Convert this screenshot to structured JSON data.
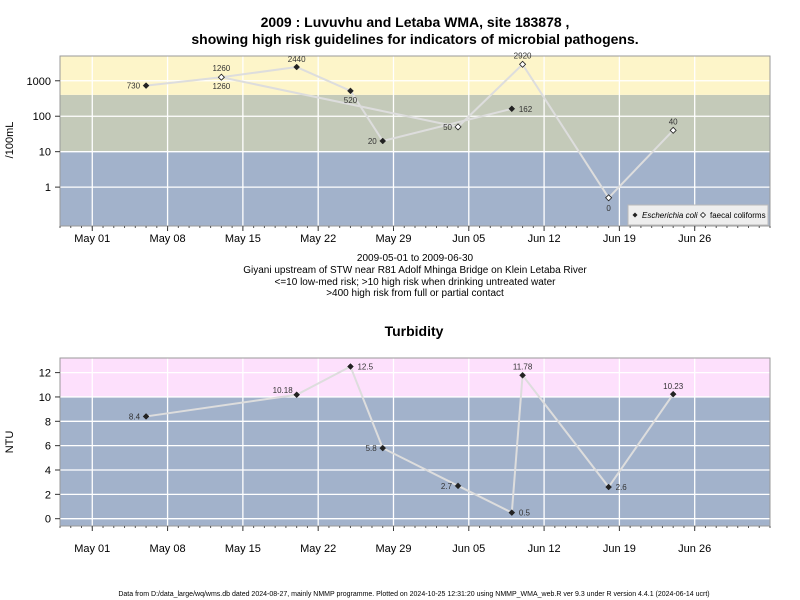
{
  "footer": "Data from D:/data_large/wq/wms.db dated 2024-08-27, mainly NMMP programme. Plotted on 2024-10-25 12:31:20 using NMMP_WMA_web.R ver 9.3 under R version 4.4.1 (2024-06-14 ucrt)",
  "colors": {
    "zone_high": "#fdf5c9",
    "zone_mid": "#c4cab9",
    "zone_low": "#a2b2cb",
    "turb_high": "#fde0fc",
    "turb_low": "#a2b2cb",
    "line": "#dddddd",
    "marker": "#222222"
  },
  "chart_data": [
    {
      "type": "line",
      "title_line1": "2009 : Luvuvhu and Letaba WMA, site 183878 ,",
      "title_line2": "showing high risk guidelines for indicators of microbial pathogens.",
      "ylabel": "/100mL",
      "y_scale": "log",
      "ylim": [
        0.08,
        5000
      ],
      "xlim": [
        "2009-04-28",
        "2009-07-03"
      ],
      "x_ticks": [
        "May 01",
        "May 08",
        "May 15",
        "May 22",
        "May 29",
        "Jun 05",
        "Jun 12",
        "Jun 19",
        "Jun 26"
      ],
      "y_ticks": [
        "1",
        "10",
        "100",
        "1000"
      ],
      "risk_bands": [
        {
          "from": 0.08,
          "to": 10,
          "level": "low-med"
        },
        {
          "from": 10,
          "to": 400,
          "level": "high (drinking)"
        },
        {
          "from": 400,
          "to": 5000,
          "level": "high (contact)"
        }
      ],
      "caption": [
        "2009-05-01 to 2009-06-30",
        "Giyani upstream of STW near R81 Adolf Mhinga Bridge on Klein Letaba River",
        "<=10 low-med risk; >10 high risk when drinking untreated water",
        ">400 high risk from full or partial contact"
      ],
      "legend": {
        "position": "bottom-right",
        "entries": [
          "Escherichia coli",
          "faecal coliforms"
        ]
      },
      "series": [
        {
          "name": "Escherichia coli",
          "marker": "filled-diamond",
          "x": [
            "2009-05-06",
            "2009-05-13",
            "2009-05-20",
            "2009-05-25",
            "2009-05-28",
            "2009-06-09"
          ],
          "y": [
            730,
            1260,
            2440,
            520,
            20,
            162
          ],
          "labels": [
            "730",
            "1260",
            "2440",
            "520",
            "20",
            "162"
          ]
        },
        {
          "name": "faecal coliforms",
          "marker": "open-diamond",
          "x": [
            "2009-05-13",
            "2009-06-04",
            "2009-06-10",
            "2009-06-18",
            "2009-06-24"
          ],
          "y": [
            1260,
            50,
            2920,
            0.5,
            40
          ],
          "labels": [
            "1260",
            "50",
            "2920",
            "0",
            "40"
          ]
        }
      ]
    },
    {
      "type": "line",
      "title": "Turbidity",
      "ylabel": "NTU",
      "ylim": [
        -0.6,
        13.2
      ],
      "xlim": [
        "2009-04-28",
        "2009-07-03"
      ],
      "x_ticks": [
        "May 01",
        "May 08",
        "May 15",
        "May 22",
        "May 29",
        "Jun 05",
        "Jun 12",
        "Jun 19",
        "Jun 26"
      ],
      "y_ticks": [
        "0",
        "2",
        "4",
        "6",
        "8",
        "10",
        "12"
      ],
      "risk_bands": [
        {
          "from": -0.6,
          "to": 10,
          "level": "low"
        },
        {
          "from": 10,
          "to": 13.2,
          "level": "high"
        }
      ],
      "series": [
        {
          "name": "",
          "marker": "filled-diamond",
          "x": [
            "2009-05-06",
            "2009-05-20",
            "2009-05-25",
            "2009-05-28",
            "2009-06-04",
            "2009-06-09",
            "2009-06-10",
            "2009-06-18",
            "2009-06-24"
          ],
          "y": [
            8.4,
            10.18,
            12.5,
            5.8,
            2.7,
            0.5,
            11.78,
            2.6,
            10.23
          ],
          "labels": [
            "8.4",
            "10.18",
            "12.5",
            "5.8",
            "2.7",
            "0.5",
            "11.78",
            "2.6",
            "10.23"
          ]
        }
      ]
    }
  ]
}
